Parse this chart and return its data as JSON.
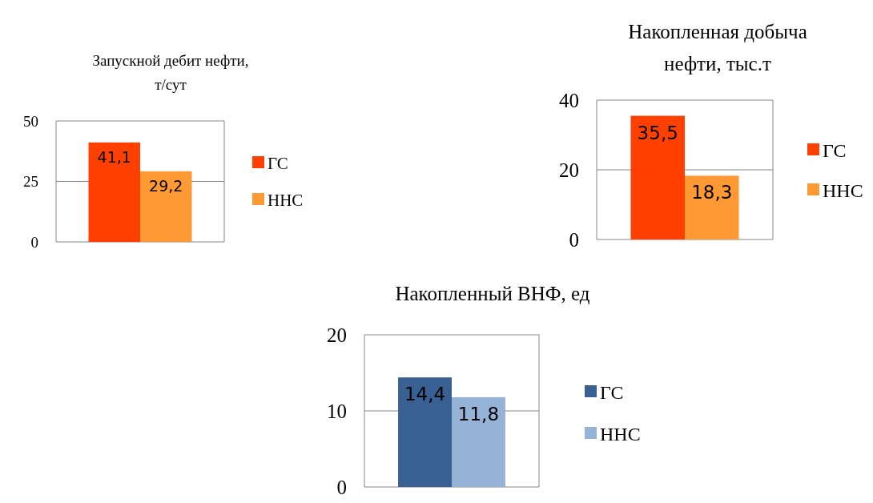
{
  "chart_data": [
    {
      "type": "bar",
      "title": "Запускной дебит нефти,\nт/сут",
      "categories": [
        null
      ],
      "series": [
        {
          "name": "ГС",
          "color": "#ff4000",
          "values": [
            41.1
          ],
          "value_labels": [
            "41,1"
          ]
        },
        {
          "name": "ННС",
          "color": "#ff9933",
          "values": [
            29.2
          ],
          "value_labels": [
            "29,2"
          ]
        }
      ],
      "ylim": [
        0,
        50
      ],
      "yticks": [
        0,
        25,
        50
      ],
      "grid": "y",
      "legend": "right",
      "tick_labels": "y"
    },
    {
      "type": "bar",
      "title": "Накопленная добыча\nнефти, тыс.т",
      "categories": [
        null
      ],
      "series": [
        {
          "name": "ГС",
          "color": "#ff4000",
          "values": [
            35.5
          ],
          "value_labels": [
            "35,5"
          ]
        },
        {
          "name": "ННС",
          "color": "#ff9933",
          "values": [
            18.3
          ],
          "value_labels": [
            "18,3"
          ]
        }
      ],
      "ylim": [
        0,
        40
      ],
      "yticks": [
        0,
        20,
        40
      ],
      "grid": "y",
      "legend": "right",
      "tick_labels": "y"
    },
    {
      "type": "bar",
      "title": "Накопленный ВНФ, ед",
      "categories": [
        null
      ],
      "series": [
        {
          "name": "ГС",
          "color": "#386092",
          "values": [
            14.4
          ],
          "value_labels": [
            "14,4"
          ]
        },
        {
          "name": "ННС",
          "color": "#95b3d7",
          "values": [
            11.8
          ],
          "value_labels": [
            "11,8"
          ]
        }
      ],
      "ylim": [
        0,
        20
      ],
      "yticks": [
        0,
        10,
        20
      ],
      "grid": "y",
      "legend": "right",
      "tick_labels": "y"
    }
  ]
}
